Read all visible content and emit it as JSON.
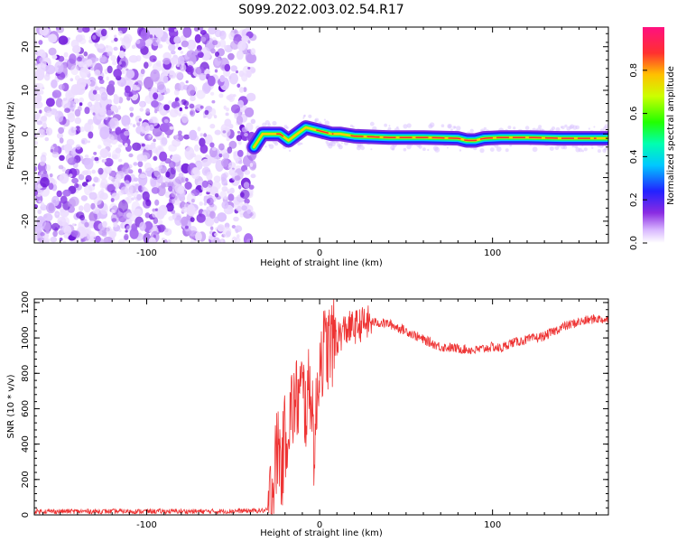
{
  "figure": {
    "title": "S099.2022.003.02.54.R17"
  },
  "chart_data": [
    {
      "type": "heatmap",
      "xlabel": "Height of straight line (km)",
      "ylabel": "Frequency (Hz)",
      "xlim": [
        -165,
        167
      ],
      "ylim": [
        -25,
        24.5
      ],
      "xticks": [
        -100,
        0,
        100
      ],
      "yticks": [
        -20,
        -10,
        0,
        10,
        20
      ],
      "noise_region_x": [
        -165,
        -38
      ],
      "signal_trace": {
        "x": [
          -38,
          -33,
          -28,
          -23,
          -18,
          -13,
          -8,
          -3,
          2,
          7,
          12,
          20,
          40,
          60,
          80,
          85,
          90,
          95,
          105,
          120,
          140,
          155,
          167
        ],
        "freq": [
          -3,
          0,
          0,
          0,
          -1.5,
          0,
          1.5,
          1,
          0.5,
          0,
          0,
          -0.5,
          -0.8,
          -0.8,
          -1,
          -1.5,
          -1.5,
          -1,
          -0.8,
          -0.8,
          -1,
          -1,
          -1
        ]
      },
      "colorbar": {
        "label": "Normalized spectral amplitude",
        "ticks": [
          "0.0",
          "0.2",
          "0.4",
          "0.6",
          "0.8"
        ],
        "range": [
          0,
          1
        ]
      },
      "grid": false
    },
    {
      "type": "line",
      "xlabel": "Height of straight line (km)",
      "ylabel": "SNR (10 * v/v)",
      "xlim": [
        -165,
        167
      ],
      "ylim": [
        0,
        1220
      ],
      "xticks": [
        -100,
        0,
        100
      ],
      "yticks": [
        0,
        200,
        400,
        600,
        800,
        1000,
        1200
      ],
      "line_color": "#ee3333",
      "series": [
        {
          "x": [
            -165,
            -130,
            -100,
            -60,
            -30,
            -27,
            -24,
            -22,
            -20,
            -18,
            -16,
            -13,
            -10,
            -8,
            -5,
            -3,
            0,
            5,
            10,
            15,
            20,
            25,
            30,
            40,
            50,
            60,
            70,
            80,
            90,
            100,
            105,
            110,
            120,
            130,
            140,
            150,
            160,
            167
          ],
          "values": [
            20,
            20,
            20,
            20,
            25,
            150,
            420,
            250,
            450,
            520,
            600,
            650,
            700,
            600,
            750,
            350,
            900,
            950,
            1000,
            1050,
            1060,
            1080,
            1090,
            1080,
            1040,
            990,
            950,
            940,
            930,
            950,
            940,
            970,
            990,
            1010,
            1060,
            1090,
            1110,
            1100
          ]
        }
      ],
      "grid": false
    }
  ]
}
